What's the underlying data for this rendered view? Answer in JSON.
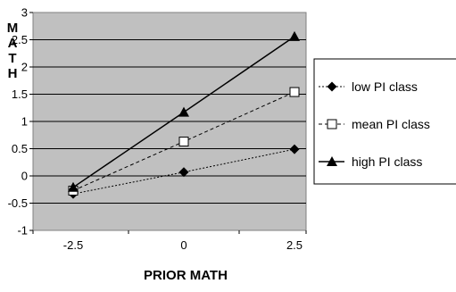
{
  "chart_data": {
    "type": "line",
    "title": "",
    "xlabel": "PRIOR MATH",
    "ylabel": "MATH",
    "x": [
      -2.5,
      0,
      2.5
    ],
    "x_tick_labels": [
      "-2.5",
      "0",
      "2.5"
    ],
    "ylim": [
      -1,
      3
    ],
    "y_ticks": [
      -1,
      -0.5,
      0,
      0.5,
      1,
      1.5,
      2,
      2.5,
      3
    ],
    "y_tick_labels": [
      "-1",
      "-0.5",
      "0",
      "0.5",
      "1",
      "1.5",
      "2",
      "2.5",
      "3"
    ],
    "grid": true,
    "legend_position": "right",
    "plot_background": "#c0c0c0",
    "series": [
      {
        "name": "low PI class",
        "values": [
          -0.33,
          0.07,
          0.49
        ],
        "marker": "diamond",
        "line": "dotted",
        "color": "#000000"
      },
      {
        "name": "mean PI class",
        "values": [
          -0.27,
          0.63,
          1.54
        ],
        "marker": "open-square",
        "line": "dashed",
        "color": "#000000"
      },
      {
        "name": "high PI class",
        "values": [
          -0.21,
          1.17,
          2.56
        ],
        "marker": "triangle",
        "line": "solid",
        "color": "#000000"
      }
    ]
  }
}
